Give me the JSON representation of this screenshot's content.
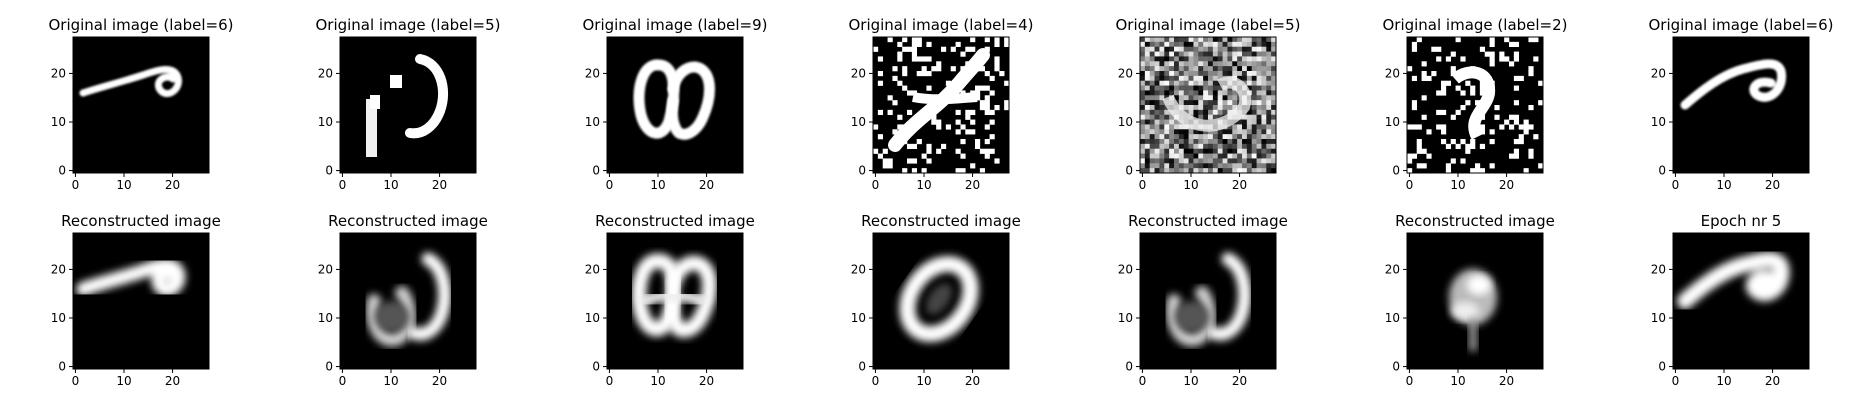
{
  "figure": {
    "columns": 7,
    "rows": 2
  },
  "chart_data": [
    {
      "type": "heatmap",
      "title": "Original image (label=6)",
      "xticks": [
        0,
        10,
        20
      ],
      "yticks": [
        0,
        10,
        20
      ],
      "xlim": [
        -0.5,
        27.5
      ],
      "ylim": [
        27.5,
        -0.5
      ],
      "cmap": "gray",
      "grid": false,
      "content": "digit 6 stroke"
    },
    {
      "type": "heatmap",
      "title": "Original image (label=5)",
      "xticks": [
        0,
        10,
        20
      ],
      "yticks": [
        0,
        10,
        20
      ],
      "xlim": [
        -0.5,
        27.5
      ],
      "ylim": [
        27.5,
        -0.5
      ],
      "cmap": "gray",
      "grid": false,
      "content": "digit 5 strokes"
    },
    {
      "type": "heatmap",
      "title": "Original image (label=9)",
      "xticks": [
        0,
        10,
        20
      ],
      "yticks": [
        0,
        10,
        20
      ],
      "xlim": [
        -0.5,
        27.5
      ],
      "ylim": [
        27.5,
        -0.5
      ],
      "cmap": "gray",
      "grid": false,
      "content": "digit 9 loops"
    },
    {
      "type": "heatmap",
      "title": "Original image (label=4)",
      "xticks": [
        0,
        10,
        20
      ],
      "yticks": [
        0,
        10,
        20
      ],
      "xlim": [
        -0.5,
        27.5
      ],
      "ylim": [
        27.5,
        -0.5
      ],
      "cmap": "gray",
      "grid": false,
      "content": "binary noise"
    },
    {
      "type": "heatmap",
      "title": "Original image (label=5)",
      "xticks": [
        0,
        10,
        20
      ],
      "yticks": [
        0,
        10,
        20
      ],
      "xlim": [
        -0.5,
        27.5
      ],
      "ylim": [
        27.5,
        -0.5
      ],
      "cmap": "gray",
      "grid": false,
      "content": "gray noise"
    },
    {
      "type": "heatmap",
      "title": "Original image (label=2)",
      "xticks": [
        0,
        10,
        20
      ],
      "yticks": [
        0,
        10,
        20
      ],
      "xlim": [
        -0.5,
        27.5
      ],
      "ylim": [
        27.5,
        -0.5
      ],
      "cmap": "gray",
      "grid": false,
      "content": "binary noise"
    },
    {
      "type": "heatmap",
      "title": "Original image (label=6)",
      "xticks": [
        0,
        10,
        20
      ],
      "yticks": [
        0,
        10,
        20
      ],
      "xlim": [
        -0.5,
        27.5
      ],
      "ylim": [
        27.5,
        -0.5
      ],
      "cmap": "gray",
      "grid": false,
      "content": "digit 6 stroke"
    },
    {
      "type": "heatmap",
      "title": "Reconstructed image",
      "xticks": [
        0,
        10,
        20
      ],
      "yticks": [
        0,
        10,
        20
      ],
      "xlim": [
        -0.5,
        27.5
      ],
      "ylim": [
        27.5,
        -0.5
      ],
      "cmap": "gray",
      "grid": false,
      "content": "blurry digit 6"
    },
    {
      "type": "heatmap",
      "title": "Reconstructed image",
      "xticks": [
        0,
        10,
        20
      ],
      "yticks": [
        0,
        10,
        20
      ],
      "xlim": [
        -0.5,
        27.5
      ],
      "ylim": [
        27.5,
        -0.5
      ],
      "cmap": "gray",
      "grid": false,
      "content": "blurry digit 5"
    },
    {
      "type": "heatmap",
      "title": "Reconstructed image",
      "xticks": [
        0,
        10,
        20
      ],
      "yticks": [
        0,
        10,
        20
      ],
      "xlim": [
        -0.5,
        27.5
      ],
      "ylim": [
        27.5,
        -0.5
      ],
      "cmap": "gray",
      "grid": false,
      "content": "blurry digit 9"
    },
    {
      "type": "heatmap",
      "title": "Reconstructed image",
      "xticks": [
        0,
        10,
        20
      ],
      "yticks": [
        0,
        10,
        20
      ],
      "xlim": [
        -0.5,
        27.5
      ],
      "ylim": [
        27.5,
        -0.5
      ],
      "cmap": "gray",
      "grid": false,
      "content": "blurry digit 4 blob"
    },
    {
      "type": "heatmap",
      "title": "Reconstructed image",
      "xticks": [
        0,
        10,
        20
      ],
      "yticks": [
        0,
        10,
        20
      ],
      "xlim": [
        -0.5,
        27.5
      ],
      "ylim": [
        27.5,
        -0.5
      ],
      "cmap": "gray",
      "grid": false,
      "content": "blurry digit 5"
    },
    {
      "type": "heatmap",
      "title": "Reconstructed image",
      "xticks": [
        0,
        10,
        20
      ],
      "yticks": [
        0,
        10,
        20
      ],
      "xlim": [
        -0.5,
        27.5
      ],
      "ylim": [
        27.5,
        -0.5
      ],
      "cmap": "gray",
      "grid": false,
      "content": "blurry digit 2 blob"
    },
    {
      "type": "heatmap",
      "title": "Epoch nr 5",
      "xticks": [
        0,
        10,
        20
      ],
      "yticks": [
        0,
        10,
        20
      ],
      "xlim": [
        -0.5,
        27.5
      ],
      "ylim": [
        27.5,
        -0.5
      ],
      "cmap": "gray",
      "grid": false,
      "content": "blurry digit 6"
    }
  ]
}
